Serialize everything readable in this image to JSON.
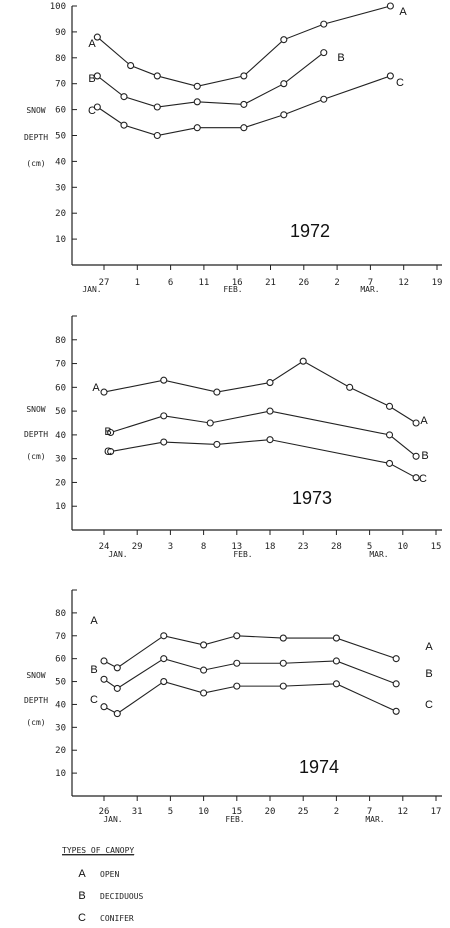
{
  "chart_data": [
    {
      "type": "line",
      "title": "1972",
      "ylabel": [
        "SNOW",
        "DEPTH",
        "(cm)"
      ],
      "ylim": [
        0,
        100
      ],
      "yticks": [
        10,
        20,
        30,
        40,
        50,
        60,
        70,
        80,
        90,
        100
      ],
      "x_ticks": [
        "27",
        "1",
        "6",
        "11",
        "16",
        "21",
        "26",
        "2",
        "7",
        "12",
        "19"
      ],
      "months": [
        "JAN.",
        "FEB.",
        "MAR."
      ],
      "series": [
        {
          "name": "A",
          "x": [
            "Jan 26",
            "Jan 31",
            "Feb 4",
            "Feb 10",
            "Feb 17",
            "Feb 23",
            "Mar 1",
            "Mar 11"
          ],
          "y": [
            88,
            77,
            73,
            69,
            73,
            87,
            93,
            100
          ]
        },
        {
          "name": "B",
          "x": [
            "Jan 26",
            "Jan 30",
            "Feb 4",
            "Feb 10",
            "Feb 17",
            "Feb 23",
            "Mar 1"
          ],
          "y": [
            73,
            65,
            61,
            63,
            62,
            70,
            82
          ]
        },
        {
          "name": "C",
          "x": [
            "Jan 26",
            "Jan 30",
            "Feb 4",
            "Feb 10",
            "Feb 17",
            "Feb 23",
            "Mar 1",
            "Mar 11"
          ],
          "y": [
            61,
            54,
            50,
            53,
            53,
            58,
            64,
            73
          ]
        }
      ]
    },
    {
      "type": "line",
      "title": "1973",
      "ylabel": [
        "SNOW",
        "DEPTH",
        "(cm)"
      ],
      "ylim": [
        0,
        90
      ],
      "yticks": [
        10,
        20,
        30,
        40,
        50,
        60,
        70,
        80
      ],
      "x_ticks": [
        "24",
        "29",
        "3",
        "8",
        "13",
        "18",
        "23",
        "28",
        "5",
        "10",
        "15"
      ],
      "months": [
        "JAN.",
        "FEB.",
        "MAR."
      ],
      "series": [
        {
          "name": "A",
          "x": [
            "Jan 24",
            "Feb 2",
            "Feb 10",
            "Feb 18",
            "Feb 23",
            "Mar 2",
            "Mar 8",
            "Mar 12"
          ],
          "y": [
            58,
            63,
            58,
            62,
            71,
            60,
            52,
            45
          ]
        },
        {
          "name": "B",
          "x": [
            "Jan 25",
            "Feb 2",
            "Feb 9",
            "Feb 18",
            "Mar 8",
            "Mar 12"
          ],
          "y": [
            41,
            48,
            45,
            50,
            40,
            31
          ]
        },
        {
          "name": "C",
          "x": [
            "Jan 25",
            "Feb 2",
            "Feb 10",
            "Feb 18",
            "Mar 8",
            "Mar 12"
          ],
          "y": [
            33,
            37,
            36,
            38,
            28,
            22
          ]
        }
      ]
    },
    {
      "type": "line",
      "title": "1974",
      "ylabel": [
        "SNOW",
        "DEPTH",
        "(cm)"
      ],
      "ylim": [
        0,
        90
      ],
      "yticks": [
        10,
        20,
        30,
        40,
        50,
        60,
        70,
        80
      ],
      "x_ticks": [
        "26",
        "31",
        "5",
        "10",
        "15",
        "20",
        "25",
        "2",
        "7",
        "12",
        "17"
      ],
      "months": [
        "JAN.",
        "FEB.",
        "MAR."
      ],
      "series": [
        {
          "name": "A",
          "x": [
            "Jan 26",
            "Jan 28",
            "Feb 4",
            "Feb 10",
            "Feb 15",
            "Feb 22",
            "Mar 2",
            "Mar 11"
          ],
          "y": [
            59,
            56,
            70,
            66,
            70,
            69,
            69,
            60
          ]
        },
        {
          "name": "B",
          "x": [
            "Jan 26",
            "Jan 28",
            "Feb 4",
            "Feb 10",
            "Feb 15",
            "Feb 22",
            "Mar 2",
            "Mar 11"
          ],
          "y": [
            51,
            47,
            60,
            55,
            58,
            58,
            59,
            49
          ]
        },
        {
          "name": "C",
          "x": [
            "Jan 26",
            "Jan 28",
            "Feb 4",
            "Feb 10",
            "Feb 15",
            "Feb 22",
            "Mar 2",
            "Mar 11"
          ],
          "y": [
            39,
            36,
            50,
            45,
            48,
            48,
            49,
            37
          ]
        }
      ]
    }
  ],
  "legend": {
    "title": "TYPES OF CANOPY",
    "items": [
      {
        "letter": "A",
        "label": "OPEN"
      },
      {
        "letter": "B",
        "label": "DECIDUOUS"
      },
      {
        "letter": "C",
        "label": "CONIFER"
      }
    ]
  }
}
